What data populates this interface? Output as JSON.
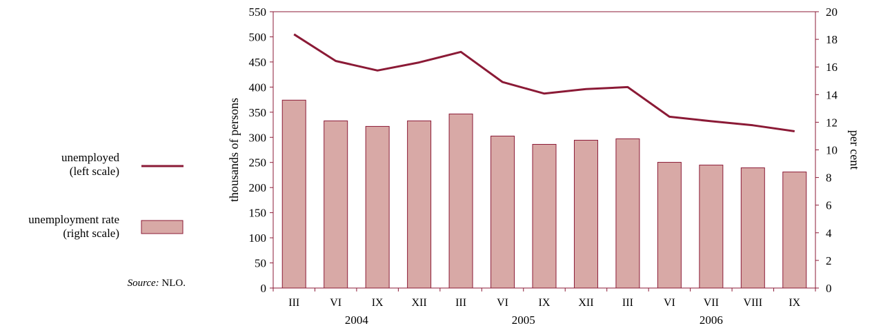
{
  "legend": {
    "unemployed_line1": "unemployed",
    "unemployed_line2": "(left scale)",
    "rate_line1": "unemployment rate",
    "rate_line2": "(right scale)"
  },
  "source": {
    "label": "Source:",
    "value": "NLO."
  },
  "colors": {
    "line": "#8b1a36",
    "bar_fill": "#d8a9a6",
    "bar_stroke": "#8b1a36",
    "axis": "#8b1a36"
  },
  "chart_data": {
    "type": "bar",
    "categories": [
      "III",
      "VI",
      "IX",
      "XII",
      "III",
      "VI",
      "IX",
      "XII",
      "III",
      "VI",
      "VII",
      "VIII",
      "IX"
    ],
    "groups": [
      {
        "label": "2004",
        "start": 0,
        "end": 3
      },
      {
        "label": "2005",
        "start": 4,
        "end": 7
      },
      {
        "label": "2006",
        "start": 8,
        "end": 12
      }
    ],
    "series": [
      {
        "name": "unemployment rate (right scale)",
        "type": "bar",
        "axis": "right",
        "values": [
          13.6,
          12.1,
          11.7,
          12.1,
          12.6,
          11.0,
          10.4,
          10.7,
          10.8,
          9.1,
          8.9,
          8.7,
          8.4
        ]
      },
      {
        "name": "unemployed (left scale)",
        "type": "line",
        "axis": "left",
        "values": [
          505,
          452,
          433,
          449,
          470,
          410,
          387,
          396,
          400,
          341,
          332,
          324,
          312
        ]
      }
    ],
    "ylabel": "thousands of persons",
    "y2label": "per cent",
    "ylim": [
      0,
      550
    ],
    "y2lim": [
      0,
      20
    ],
    "yticks": [
      "0",
      "50",
      "100",
      "150",
      "200",
      "250",
      "300",
      "350",
      "400",
      "450",
      "500",
      "550"
    ],
    "y2ticks": [
      "0",
      "2",
      "4",
      "6",
      "8",
      "10",
      "12",
      "14",
      "16",
      "18",
      "20"
    ],
    "grid": false,
    "legend_position": "left"
  }
}
